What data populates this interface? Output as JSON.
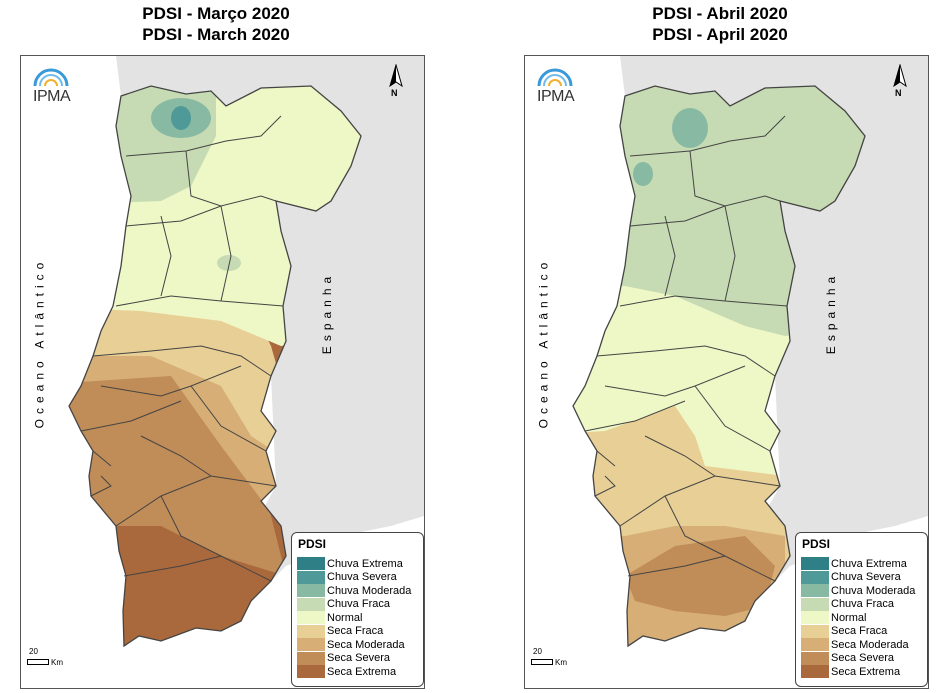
{
  "maps": [
    {
      "title_pt": "PDSI - Março 2020",
      "title_en": "PDSI - March 2020"
    },
    {
      "title_pt": "PDSI - Abril 2020",
      "title_en": "PDSI - April 2020"
    }
  ],
  "labels": {
    "ocean": "Oceano Atlântico",
    "spain": "Espanha",
    "logo": "IPMA",
    "north": "N",
    "scale_value": "20",
    "scale_unit": "Km"
  },
  "legend": {
    "title": "PDSI",
    "classes": [
      {
        "label": "Chuva Extrema",
        "color": "#2e7f86"
      },
      {
        "label": "Chuva Severa",
        "color": "#4f9a98"
      },
      {
        "label": "Chuva Moderada",
        "color": "#88b9a3"
      },
      {
        "label": "Chuva Fraca",
        "color": "#c6dbb3"
      },
      {
        "label": "Normal",
        "color": "#eef7c6"
      },
      {
        "label": "Seca Fraca",
        "color": "#e8cf96"
      },
      {
        "label": "Seca Moderada",
        "color": "#d6ae76"
      },
      {
        "label": "Seca Severa",
        "color": "#c08c57"
      },
      {
        "label": "Seca Extrema",
        "color": "#a9693c"
      }
    ]
  },
  "colors": {
    "spain_land": "#e3e3e3",
    "border": "#444444"
  }
}
